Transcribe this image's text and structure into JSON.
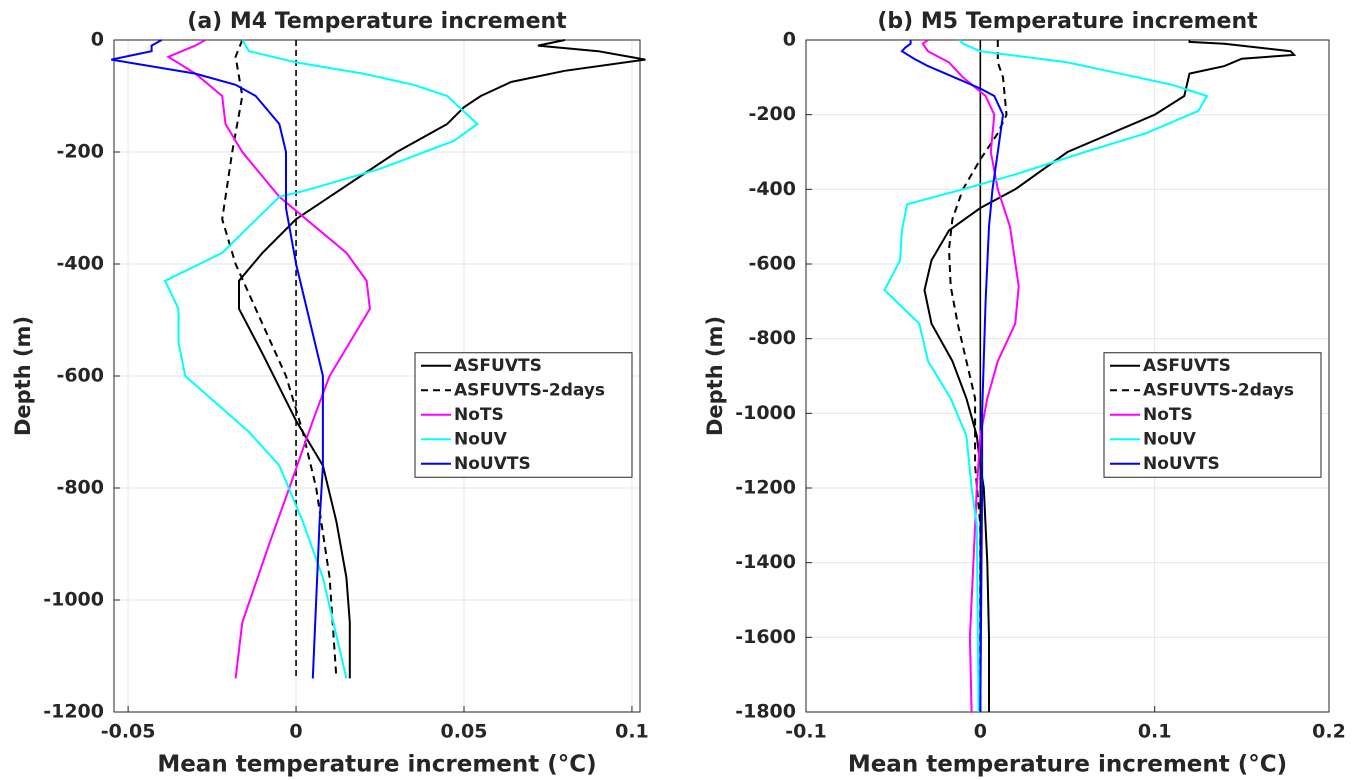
{
  "chart_data": [
    {
      "type": "line",
      "title": "(a) M4 Temperature increment",
      "xlabel": "Mean temperature increment (°C)",
      "ylabel": "Depth (m)",
      "xlim": [
        -0.0542,
        0.1024
      ],
      "xticks": [
        -0.05,
        0,
        0.05,
        0.1
      ],
      "ylim": [
        -1200,
        0
      ],
      "yticks": [
        -1200,
        -1000,
        -800,
        -600,
        -400,
        -200,
        0
      ],
      "grid": true,
      "legend": "east",
      "zero_line": "dashed",
      "series": [
        {
          "name": "ASFUVTS",
          "color": "#000000",
          "dash": "solid",
          "x": [
            0.08,
            0.072,
            0.09,
            0.104,
            0.08,
            0.064,
            0.055,
            0.05,
            0.045,
            0.03,
            0.01,
            0,
            -0.01,
            -0.017,
            -0.017,
            -0.01,
            0,
            0.008,
            0.012,
            0.015,
            0.016,
            0.016
          ],
          "y": [
            0,
            -10,
            -20,
            -35,
            -55,
            -75,
            -100,
            -120,
            -150,
            -200,
            -280,
            -320,
            -380,
            -430,
            -480,
            -560,
            -680,
            -760,
            -860,
            -960,
            -1040,
            -1140
          ]
        },
        {
          "name": "ASFUVTS-2days",
          "color": "#000000",
          "dash": "dashed",
          "x": [
            -0.016,
            -0.018,
            -0.016,
            -0.019,
            -0.022,
            -0.018,
            -0.012,
            -0.003,
            0.002,
            0.006,
            0.01,
            0.012
          ],
          "y": [
            0,
            -30,
            -100,
            -200,
            -320,
            -400,
            -480,
            -600,
            -700,
            -800,
            -960,
            -1140
          ]
        },
        {
          "name": "NoTS",
          "color": "#ff00ff",
          "dash": "solid",
          "x": [
            -0.027,
            -0.03,
            -0.038,
            -0.03,
            -0.022,
            -0.021,
            -0.016,
            -0.005,
            0.015,
            0.021,
            0.022,
            0.016,
            0.01,
            0.005,
            -0.002,
            -0.008,
            -0.016,
            -0.018
          ],
          "y": [
            0,
            -10,
            -30,
            -60,
            -100,
            -150,
            -200,
            -280,
            -380,
            -430,
            -480,
            -540,
            -600,
            -680,
            -800,
            -900,
            -1040,
            -1140
          ]
        },
        {
          "name": "NoUV",
          "color": "#00ffff",
          "dash": "solid",
          "x": [
            -0.016,
            -0.014,
            0,
            0.02,
            0.035,
            0.045,
            0.054,
            0.047,
            0.025,
            0.002,
            -0.005,
            -0.022,
            -0.039,
            -0.035,
            -0.035,
            -0.033,
            -0.014,
            -0.005,
            0.002,
            0.008,
            0.015
          ],
          "y": [
            0,
            -20,
            -40,
            -60,
            -80,
            -100,
            -150,
            -180,
            -230,
            -270,
            -280,
            -380,
            -430,
            -480,
            -540,
            -600,
            -700,
            -760,
            -860,
            -960,
            -1140
          ]
        },
        {
          "name": "NoUVTS",
          "color": "#0000ff",
          "dash": "solid",
          "x": [
            -0.04,
            -0.043,
            -0.043,
            -0.055,
            -0.03,
            -0.018,
            -0.012,
            -0.005,
            -0.003,
            -0.003,
            0,
            0.004,
            0.008,
            0.008,
            0.008,
            0.007,
            0.006,
            0.005
          ],
          "y": [
            0,
            -10,
            -20,
            -35,
            -60,
            -80,
            -100,
            -150,
            -200,
            -300,
            -400,
            -500,
            -600,
            -700,
            -760,
            -860,
            -1000,
            -1140
          ]
        }
      ]
    },
    {
      "type": "line",
      "title": "(b) M5 Temperature increment",
      "xlabel": "Mean temperature increment (°C)",
      "ylabel": "Depth (m)",
      "xlim": [
        -0.1,
        0.2
      ],
      "xticks": [
        -0.1,
        0,
        0.1,
        0.2
      ],
      "ylim": [
        -1800,
        0
      ],
      "yticks": [
        -1800,
        -1600,
        -1400,
        -1200,
        -1000,
        -800,
        -600,
        -400,
        -200,
        0
      ],
      "grid": true,
      "legend": "east",
      "zero_line": "solid",
      "series": [
        {
          "name": "ASFUVTS",
          "color": "#000000",
          "dash": "solid",
          "x": [
            0.12,
            0.12,
            0.14,
            0.178,
            0.18,
            0.15,
            0.14,
            0.12,
            0.117,
            0.1,
            0.05,
            0.02,
            0,
            -0.018,
            -0.028,
            -0.032,
            -0.028,
            -0.016,
            -0.008,
            -0.002,
            0,
            0.002,
            0.004,
            0.005,
            0.005
          ],
          "y": [
            0,
            -5,
            -10,
            -30,
            -40,
            -50,
            -70,
            -90,
            -150,
            -200,
            -300,
            -400,
            -450,
            -510,
            -590,
            -670,
            -760,
            -860,
            -960,
            -1060,
            -1140,
            -1200,
            -1400,
            -1600,
            -1800
          ]
        },
        {
          "name": "ASFUVTS-2days",
          "color": "#000000",
          "dash": "dashed",
          "x": [
            0.01,
            0.01,
            0.013,
            0.015,
            0.01,
            0,
            -0.01,
            -0.016,
            -0.018,
            -0.017,
            -0.013,
            -0.008,
            -0.003,
            -0.003,
            0,
            0
          ],
          "y": [
            0,
            -60,
            -100,
            -200,
            -250,
            -320,
            -400,
            -480,
            -560,
            -660,
            -760,
            -860,
            -960,
            -1140,
            -1300,
            -1800
          ]
        },
        {
          "name": "NoTS",
          "color": "#ff00ff",
          "dash": "solid",
          "x": [
            -0.03,
            -0.033,
            -0.03,
            -0.018,
            -0.01,
            0.003,
            0.008,
            0.006,
            0.01,
            0.017,
            0.022,
            0.02,
            0.01,
            0.004,
            0,
            -0.002,
            -0.004,
            -0.006,
            -0.005
          ],
          "y": [
            0,
            -10,
            -30,
            -60,
            -100,
            -150,
            -200,
            -300,
            -400,
            -500,
            -660,
            -760,
            -860,
            -960,
            -1060,
            -1200,
            -1400,
            -1600,
            -1800
          ]
        },
        {
          "name": "NoUV",
          "color": "#00ffff",
          "dash": "solid",
          "x": [
            -0.012,
            -0.01,
            0,
            0.05,
            0.09,
            0.11,
            0.13,
            0.125,
            0.095,
            0.06,
            0.02,
            -0.01,
            -0.042,
            -0.045,
            -0.046,
            -0.055,
            -0.035,
            -0.03,
            -0.017,
            -0.008,
            -0.005,
            -0.002,
            -0.001
          ],
          "y": [
            0,
            -10,
            -30,
            -60,
            -100,
            -120,
            -150,
            -190,
            -250,
            -300,
            -360,
            -400,
            -440,
            -510,
            -590,
            -670,
            -760,
            -860,
            -960,
            -1060,
            -1200,
            -1300,
            -1800
          ]
        },
        {
          "name": "NoUVTS",
          "color": "#0000ff",
          "dash": "solid",
          "x": [
            -0.04,
            -0.04,
            -0.043,
            -0.045,
            -0.038,
            -0.03,
            -0.015,
            0,
            0.008,
            0.013,
            0.01,
            0.007,
            0.005,
            0.003,
            0.001,
            0.001,
            0
          ],
          "y": [
            0,
            -10,
            -20,
            -30,
            -50,
            -70,
            -100,
            -130,
            -150,
            -200,
            -300,
            -400,
            -500,
            -700,
            -1000,
            -1200,
            -1800
          ]
        }
      ]
    }
  ]
}
